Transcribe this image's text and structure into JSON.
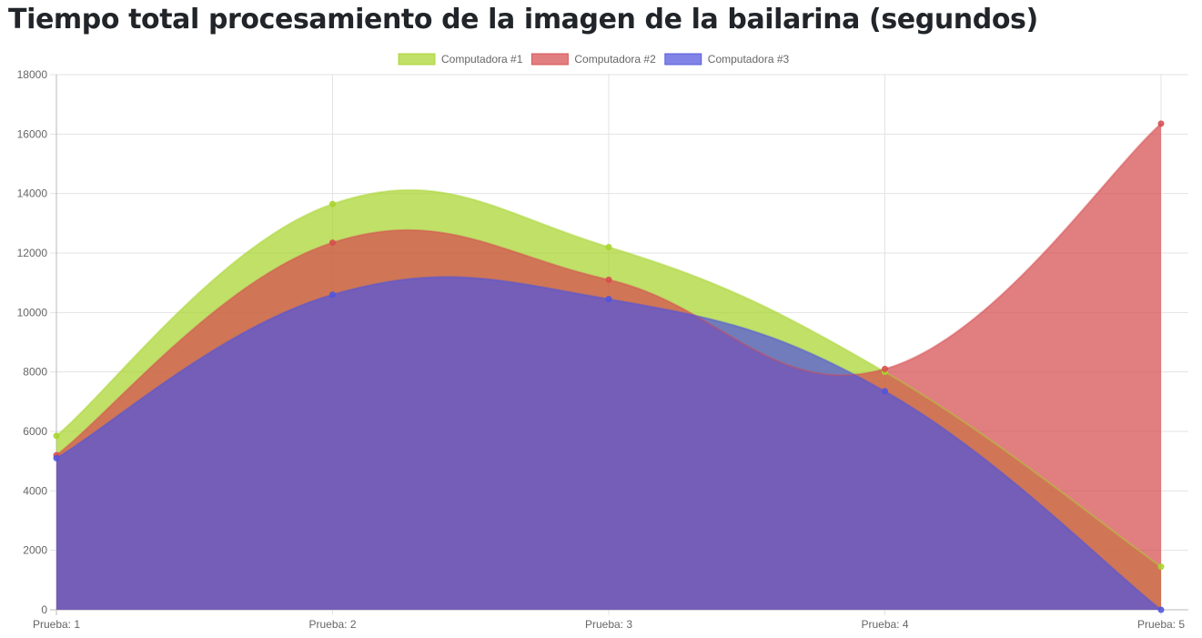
{
  "page": {
    "title": "Tiempo total procesamiento de la imagen de la bailarina (segundos)"
  },
  "chart_data": {
    "type": "area",
    "title": "",
    "xlabel": "",
    "ylabel": "",
    "categories": [
      "Prueba: 1",
      "Prueba: 2",
      "Prueba: 3",
      "Prueba: 4",
      "Prueba: 5"
    ],
    "ylim": [
      0,
      18000
    ],
    "yticks": [
      0,
      2000,
      4000,
      6000,
      8000,
      10000,
      12000,
      14000,
      16000,
      18000
    ],
    "grid": true,
    "legend_position": "top",
    "curve": "smooth",
    "series": [
      {
        "name": "Computadora #1",
        "values": [
          5850,
          13650,
          12200,
          8000,
          1450
        ],
        "fill": "#a8d42e",
        "stroke": "#a8d42e"
      },
      {
        "name": "Computadora #2",
        "values": [
          5200,
          12350,
          11100,
          8100,
          16350
        ],
        "fill": "#d64c4f",
        "stroke": "#d64c4f"
      },
      {
        "name": "Computadora #3",
        "values": [
          5100,
          10600,
          10450,
          7350,
          0
        ],
        "fill": "#5055dd",
        "stroke": "#5055dd"
      }
    ]
  }
}
